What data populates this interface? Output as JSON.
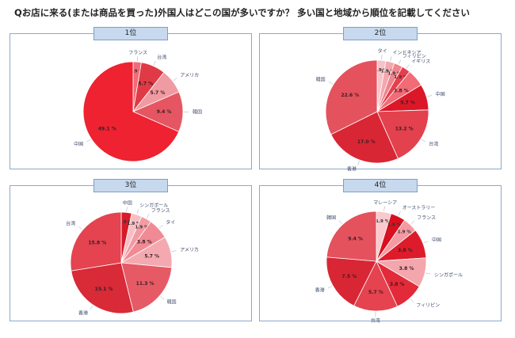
{
  "page": {
    "title": "Qお店に来る(または商品を買った)外国人はどこの国が多いですか？ 多い国と地域から順位を記載してください"
  },
  "chart_data": [
    {
      "type": "pie",
      "title": "1位",
      "slices": [
        {
          "label": "フランス",
          "value": 1.9,
          "value_label": "1.9 %",
          "color": "#f26b76"
        },
        {
          "label": "台湾",
          "value": 5.7,
          "value_label": "5.7 %",
          "color": "#e03a46"
        },
        {
          "label": "アメリカ",
          "value": 5.7,
          "value_label": "5.7 %",
          "color": "#f09aa2"
        },
        {
          "label": "韓国",
          "value": 9.4,
          "value_label": "9.4 %",
          "color": "#e55662"
        },
        {
          "label": "中国",
          "value": 49.1,
          "value_label": "49.1 %",
          "color": "#ee2231"
        }
      ]
    },
    {
      "type": "pie",
      "title": "2位",
      "slices": [
        {
          "label": "タイ",
          "value": 1.9,
          "value_label": "1.9 %",
          "color": "#f7c3c8"
        },
        {
          "label": "インドネシア",
          "value": 1.9,
          "value_label": "1.9 %",
          "color": "#f3a7ae"
        },
        {
          "label": "フィリピン",
          "value": 1.9,
          "value_label": "1.9 %",
          "color": "#f0848e"
        },
        {
          "label": "イギリス",
          "value": 1.9,
          "value_label": "1.9 %",
          "color": "#e83e4b"
        },
        {
          "label": "",
          "value": 3.8,
          "value_label": "3.8 %",
          "color": "#f26b76"
        },
        {
          "label": "中国",
          "value": 5.7,
          "value_label": "5.7 %",
          "color": "#dc1828"
        },
        {
          "label": "台湾",
          "value": 13.2,
          "value_label": "13.2 %",
          "color": "#e3414d"
        },
        {
          "label": "香港",
          "value": 17.0,
          "value_label": "17.0 %",
          "color": "#d92634"
        },
        {
          "label": "韓国",
          "value": 22.6,
          "value_label": "22.6 %",
          "color": "#e4525d"
        }
      ]
    },
    {
      "type": "pie",
      "title": "3位",
      "slices": [
        {
          "label": "中国",
          "value": 1.9,
          "value_label": "1.9 %",
          "color": "#d71a28"
        },
        {
          "label": "シンガポール",
          "value": 1.9,
          "value_label": "1.9 %",
          "color": "#f7bfc5"
        },
        {
          "label": "フランス",
          "value": 1.9,
          "value_label": "1.9 %",
          "color": "#f39aa2"
        },
        {
          "label": "タイ",
          "value": 3.8,
          "value_label": "3.8 %",
          "color": "#f08a94"
        },
        {
          "label": "アメリカ",
          "value": 5.7,
          "value_label": "5.7 %",
          "color": "#f4a9b0"
        },
        {
          "label": "韓国",
          "value": 11.3,
          "value_label": "11.3 %",
          "color": "#e65a66"
        },
        {
          "label": "香港",
          "value": 15.1,
          "value_label": "15.1 %",
          "color": "#d92a37"
        },
        {
          "label": "台湾",
          "value": 15.8,
          "value_label": "15.8 %",
          "color": "#e4434f"
        }
      ]
    },
    {
      "type": "pie",
      "title": "4位",
      "slices": [
        {
          "label": "マレーシア",
          "value": 1.9,
          "value_label": "1.9 %",
          "color": "#f9c9cd"
        },
        {
          "label": "オーストラリー",
          "value": 1.9,
          "value_label": "1.9 %",
          "color": "#d9101f"
        },
        {
          "label": "フランス",
          "value": 1.9,
          "value_label": "1.9 %",
          "color": "#f49aa2"
        },
        {
          "label": "中国",
          "value": 3.8,
          "value_label": "3.8 %",
          "color": "#dd1c2b"
        },
        {
          "label": "シンガポール",
          "value": 3.8,
          "value_label": "3.8 %",
          "color": "#f4a6ad"
        },
        {
          "label": "フィリピン",
          "value": 3.8,
          "value_label": "3.8 %",
          "color": "#e22a38"
        },
        {
          "label": "台湾",
          "value": 5.7,
          "value_label": "5.7 %",
          "color": "#e4434f"
        },
        {
          "label": "香港",
          "value": 7.5,
          "value_label": "7.5 %",
          "color": "#d92634"
        },
        {
          "label": "韓国",
          "value": 9.4,
          "value_label": "9.4 %",
          "color": "#e4525d"
        }
      ]
    }
  ]
}
